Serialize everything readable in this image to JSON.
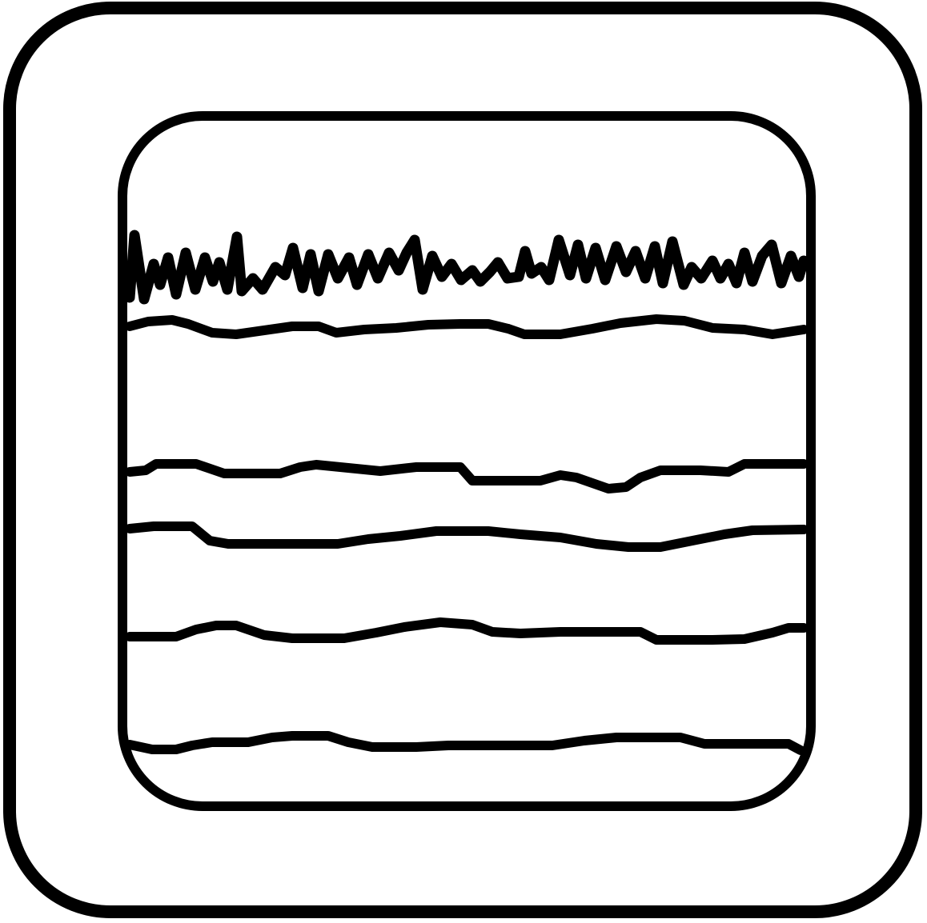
{
  "icon": {
    "name": "seismograph-waves-icon",
    "stroke_color": "#000000",
    "background_color": "#ffffff",
    "trace_count": 6
  }
}
